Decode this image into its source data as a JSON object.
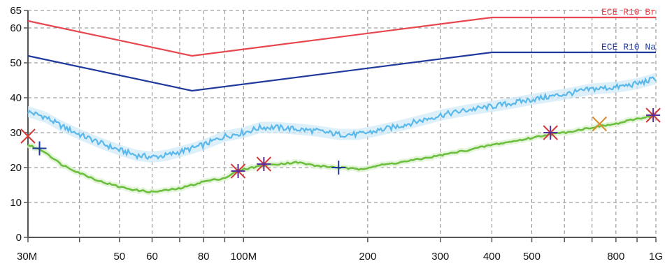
{
  "chart_data": {
    "type": "line",
    "title": "",
    "xlabel": "",
    "ylabel": "",
    "x_scale": "log",
    "x_unit": "Hz",
    "xlim": [
      30000000,
      1000000000
    ],
    "ylim": [
      0,
      65
    ],
    "grid": true,
    "x_ticks": [
      {
        "value": 30000000,
        "label": "30M"
      },
      {
        "value": 50000000,
        "label": "50"
      },
      {
        "value": 60000000,
        "label": "60"
      },
      {
        "value": 80000000,
        "label": "80"
      },
      {
        "value": 100000000,
        "label": "100M"
      },
      {
        "value": 200000000,
        "label": "200"
      },
      {
        "value": 300000000,
        "label": "300"
      },
      {
        "value": 400000000,
        "label": "400"
      },
      {
        "value": 500000000,
        "label": "500"
      },
      {
        "value": 800000000,
        "label": "800"
      },
      {
        "value": 1000000000,
        "label": "1G"
      }
    ],
    "x_minor_ticks": [
      40000000,
      70000000,
      90000000,
      600000000,
      700000000,
      900000000
    ],
    "y_ticks": [
      {
        "value": 0,
        "label": "0"
      },
      {
        "value": 10,
        "label": "10"
      },
      {
        "value": 20,
        "label": "20"
      },
      {
        "value": 30,
        "label": "30"
      },
      {
        "value": 40,
        "label": "40"
      },
      {
        "value": 50,
        "label": "50"
      },
      {
        "value": 60,
        "label": "60"
      },
      {
        "value": 65,
        "label": "65"
      }
    ],
    "series": [
      {
        "name": "ECE R10 Br",
        "color": "#e8474f",
        "style": "limit",
        "x": [
          30000000,
          75000000,
          400000000,
          1000000000
        ],
        "y": [
          62,
          52,
          63,
          63
        ]
      },
      {
        "name": "ECE R10 Na",
        "color": "#1f3a9c",
        "style": "limit",
        "x": [
          30000000,
          75000000,
          400000000,
          1000000000
        ],
        "y": [
          52,
          42,
          53,
          53
        ]
      },
      {
        "name": "",
        "color": "#5ab8ea",
        "style": "noisy",
        "x": [
          30000000,
          33000000,
          36000000,
          40000000,
          45000000,
          50000000,
          55000000,
          60000000,
          65000000,
          70000000,
          75000000,
          80000000,
          90000000,
          100000000,
          110000000,
          120000000,
          135000000,
          150000000,
          170000000,
          190000000,
          210000000,
          240000000,
          270000000,
          300000000,
          350000000,
          400000000,
          450000000,
          500000000,
          600000000,
          700000000,
          800000000,
          900000000,
          1000000000
        ],
        "y": [
          36,
          34.5,
          32,
          29.5,
          27,
          25,
          23.5,
          23,
          23.5,
          24.5,
          25.5,
          26.5,
          29,
          30,
          31.5,
          31.5,
          31,
          30.5,
          29.5,
          29.5,
          30.5,
          32,
          33.5,
          35,
          36.5,
          37.5,
          38.5,
          39.5,
          41,
          42.5,
          43,
          44,
          45.5
        ]
      },
      {
        "name": "",
        "color": "#6cbf3e",
        "style": "smooth",
        "x": [
          30000000,
          33000000,
          36000000,
          40000000,
          45000000,
          50000000,
          55000000,
          60000000,
          65000000,
          70000000,
          75000000,
          80000000,
          90000000,
          95000000,
          100000000,
          110000000,
          120000000,
          135000000,
          150000000,
          170000000,
          190000000,
          210000000,
          240000000,
          270000000,
          300000000,
          350000000,
          400000000,
          450000000,
          500000000,
          550000000,
          600000000,
          700000000,
          800000000,
          900000000,
          1000000000
        ],
        "y": [
          26.5,
          24.5,
          21,
          18.5,
          16,
          14.5,
          13.5,
          13,
          13.5,
          14,
          15,
          16,
          17,
          18.5,
          19.5,
          20.5,
          21,
          21.5,
          20.5,
          20,
          19.5,
          20.5,
          21.5,
          22.5,
          23.5,
          25,
          26.5,
          27.5,
          28.5,
          29.5,
          30,
          31.5,
          32.5,
          34,
          35
        ]
      }
    ],
    "markers": [
      {
        "symbol": "cross",
        "x": 30000000,
        "y": 29,
        "color": "#d33a3a"
      },
      {
        "symbol": "plus",
        "x": 32000000,
        "y": 25.5,
        "color": "#1f3a9c"
      },
      {
        "symbol": "asterisk",
        "x": 97000000,
        "y": 19,
        "color": "#5b2c9c"
      },
      {
        "symbol": "asterisk",
        "x": 112000000,
        "y": 21,
        "color": "#5b2c9c"
      },
      {
        "symbol": "plus",
        "x": 170000000,
        "y": 20,
        "color": "#1f3a9c"
      },
      {
        "symbol": "asterisk",
        "x": 555000000,
        "y": 30,
        "color": "#5b2c9c"
      },
      {
        "symbol": "cross",
        "x": 730000000,
        "y": 32.5,
        "color": "#d98a2e"
      },
      {
        "symbol": "asterisk",
        "x": 985000000,
        "y": 35,
        "color": "#5b2c9c"
      }
    ],
    "legend_position": "top-right"
  }
}
